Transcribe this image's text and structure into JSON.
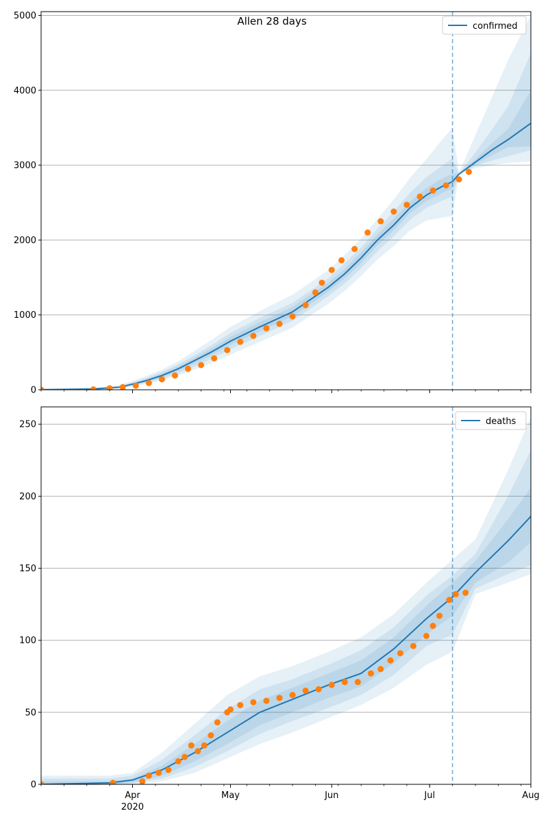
{
  "chart_data": [
    {
      "type": "line",
      "title": "Allen 28 days",
      "legend": "confirmed",
      "legend_position": "top-right",
      "grid": "y",
      "y_ticks": [
        "0",
        "1000",
        "2000",
        "3000",
        "4000",
        "5000"
      ],
      "ylim": [
        0,
        5050
      ],
      "xlim": [
        "2020-03-04",
        "2020-08-01"
      ],
      "forecast_start": "2020-07-08",
      "colors": {
        "line": "#1f77b4",
        "points": "#ff7f0e",
        "band": "#1f77b4"
      },
      "model_line": {
        "x": [
          "2020-03-04",
          "2020-03-20",
          "2020-03-28",
          "2020-04-01",
          "2020-04-05",
          "2020-04-10",
          "2020-04-15",
          "2020-04-20",
          "2020-04-25",
          "2020-05-01",
          "2020-05-10",
          "2020-05-20",
          "2020-05-31",
          "2020-06-05",
          "2020-06-10",
          "2020-06-15",
          "2020-06-20",
          "2020-06-25",
          "2020-06-30",
          "2020-07-05",
          "2020-07-08",
          "2020-07-10",
          "2020-07-15",
          "2020-07-20",
          "2020-07-25",
          "2020-08-01"
        ],
        "y": [
          0,
          10,
          35,
          75,
          120,
          190,
          280,
          390,
          500,
          650,
          840,
          1040,
          1370,
          1550,
          1760,
          2000,
          2200,
          2430,
          2600,
          2720,
          2780,
          2880,
          3040,
          3200,
          3340,
          3560
        ]
      },
      "bands": [
        {
          "level": "outer",
          "lower": [
            0,
            5,
            20,
            45,
            75,
            125,
            190,
            270,
            350,
            470,
            640,
            830,
            1150,
            1320,
            1520,
            1740,
            1920,
            2130,
            2260,
            2300,
            2320,
            2880,
            2960,
            3000,
            3030,
            3050
          ],
          "upper": [
            20,
            25,
            60,
            120,
            180,
            270,
            380,
            520,
            660,
            840,
            1050,
            1270,
            1600,
            1800,
            2020,
            2280,
            2540,
            2830,
            3080,
            3350,
            3500,
            2900,
            3400,
            3900,
            4400,
            5000
          ]
        },
        {
          "level": "middle",
          "lower": [
            0,
            6,
            25,
            55,
            90,
            145,
            220,
            310,
            410,
            540,
            720,
            920,
            1250,
            1420,
            1620,
            1850,
            2050,
            2270,
            2430,
            2530,
            2580,
            2880,
            2990,
            3060,
            3120,
            3200
          ],
          "upper": [
            12,
            18,
            48,
            100,
            155,
            240,
            340,
            460,
            590,
            760,
            960,
            1160,
            1490,
            1690,
            1900,
            2150,
            2380,
            2630,
            2840,
            3000,
            3090,
            2890,
            3170,
            3470,
            3780,
            4500
          ]
        },
        {
          "level": "inner",
          "lower": [
            0,
            8,
            30,
            65,
            105,
            165,
            250,
            350,
            455,
            600,
            780,
            980,
            1310,
            1490,
            1690,
            1930,
            2130,
            2360,
            2520,
            2630,
            2690,
            2880,
            3010,
            3130,
            3240,
            3250
          ],
          "upper": [
            6,
            14,
            42,
            88,
            138,
            218,
            312,
            428,
            548,
            706,
            904,
            1104,
            1434,
            1614,
            1834,
            2074,
            2284,
            2514,
            2694,
            2824,
            2884,
            2885,
            3080,
            3290,
            3480,
            4000
          ]
        }
      ],
      "observed": {
        "x": [
          "2020-03-04",
          "2020-03-20",
          "2020-03-25",
          "2020-03-29",
          "2020-04-02",
          "2020-04-06",
          "2020-04-10",
          "2020-04-14",
          "2020-04-18",
          "2020-04-22",
          "2020-04-26",
          "2020-04-30",
          "2020-05-04",
          "2020-05-08",
          "2020-05-12",
          "2020-05-16",
          "2020-05-20",
          "2020-05-24",
          "2020-05-27",
          "2020-05-29",
          "2020-06-01",
          "2020-06-04",
          "2020-06-08",
          "2020-06-12",
          "2020-06-16",
          "2020-06-20",
          "2020-06-24",
          "2020-06-28",
          "2020-07-02",
          "2020-07-06",
          "2020-07-10",
          "2020-07-13"
        ],
        "y": [
          0,
          5,
          20,
          35,
          55,
          90,
          140,
          190,
          280,
          330,
          420,
          530,
          640,
          720,
          820,
          880,
          980,
          1130,
          1300,
          1430,
          1600,
          1730,
          1880,
          2100,
          2250,
          2380,
          2470,
          2580,
          2660,
          2730,
          2810,
          2910
        ]
      }
    },
    {
      "type": "line",
      "title": "",
      "legend": "deaths",
      "legend_position": "top-right",
      "grid": "y",
      "y_ticks": [
        "0",
        "50",
        "100",
        "150",
        "200",
        "250"
      ],
      "ylim": [
        0,
        262
      ],
      "xlim": [
        "2020-03-04",
        "2020-08-01"
      ],
      "x_ticks": [
        "Apr",
        "May",
        "Jun",
        "Jul",
        "Aug"
      ],
      "x_ticks_dates": [
        "2020-04-01",
        "2020-05-01",
        "2020-06-01",
        "2020-07-01",
        "2020-08-01"
      ],
      "x_year_label": "2020",
      "forecast_start": "2020-07-08",
      "colors": {
        "line": "#1f77b4",
        "points": "#ff7f0e",
        "band": "#1f77b4"
      },
      "model_line": {
        "x": [
          "2020-03-04",
          "2020-03-25",
          "2020-04-01",
          "2020-04-10",
          "2020-04-20",
          "2020-04-30",
          "2020-05-10",
          "2020-05-20",
          "2020-05-31",
          "2020-06-10",
          "2020-06-20",
          "2020-06-30",
          "2020-07-08",
          "2020-07-15",
          "2020-07-25",
          "2020-08-01"
        ],
        "y": [
          0,
          1,
          3,
          10,
          22,
          36,
          50,
          59,
          69,
          77,
          94,
          115,
          130,
          147,
          169,
          186
        ]
      },
      "bands": [
        {
          "level": "outer",
          "lower": [
            0,
            0,
            0,
            2,
            8,
            18,
            28,
            36,
            46,
            55,
            67,
            83,
            92,
            132,
            140,
            146
          ],
          "upper": [
            6,
            6,
            8,
            22,
            42,
            62,
            75,
            82,
            92,
            102,
            118,
            140,
            156,
            170,
            218,
            255
          ]
        },
        {
          "level": "middle",
          "lower": [
            0,
            0,
            1,
            4,
            12,
            23,
            35,
            44,
            53,
            62,
            76,
            96,
            104,
            136,
            146,
            152
          ],
          "upper": [
            4,
            4,
            6,
            17,
            34,
            52,
            66,
            73,
            83,
            93,
            109,
            131,
            145,
            160,
            200,
            232
          ]
        },
        {
          "level": "inner",
          "lower": [
            0,
            0,
            1,
            6,
            16,
            28,
            41,
            50,
            60,
            68,
            84,
            104,
            117,
            140,
            154,
            168
          ],
          "upper": [
            2,
            2,
            4,
            13,
            28,
            44,
            58,
            67,
            77,
            86,
            102,
            124,
            140,
            155,
            184,
            206
          ]
        }
      ],
      "observed": {
        "x": [
          "2020-03-04",
          "2020-03-26",
          "2020-04-04",
          "2020-04-06",
          "2020-04-09",
          "2020-04-12",
          "2020-04-15",
          "2020-04-17",
          "2020-04-19",
          "2020-04-21",
          "2020-04-23",
          "2020-04-25",
          "2020-04-27",
          "2020-04-30",
          "2020-05-01",
          "2020-05-04",
          "2020-05-08",
          "2020-05-12",
          "2020-05-16",
          "2020-05-20",
          "2020-05-24",
          "2020-05-28",
          "2020-06-01",
          "2020-06-05",
          "2020-06-09",
          "2020-06-13",
          "2020-06-16",
          "2020-06-19",
          "2020-06-22",
          "2020-06-26",
          "2020-06-30",
          "2020-07-02",
          "2020-07-04",
          "2020-07-07",
          "2020-07-09",
          "2020-07-12"
        ],
        "y": [
          0,
          1,
          2,
          6,
          8,
          10,
          16,
          19,
          27,
          23,
          27,
          34,
          43,
          50,
          52,
          55,
          57,
          58,
          60,
          62,
          65,
          66,
          69,
          71,
          71,
          77,
          80,
          86,
          91,
          96,
          103,
          110,
          117,
          128,
          132,
          133
        ]
      }
    }
  ]
}
